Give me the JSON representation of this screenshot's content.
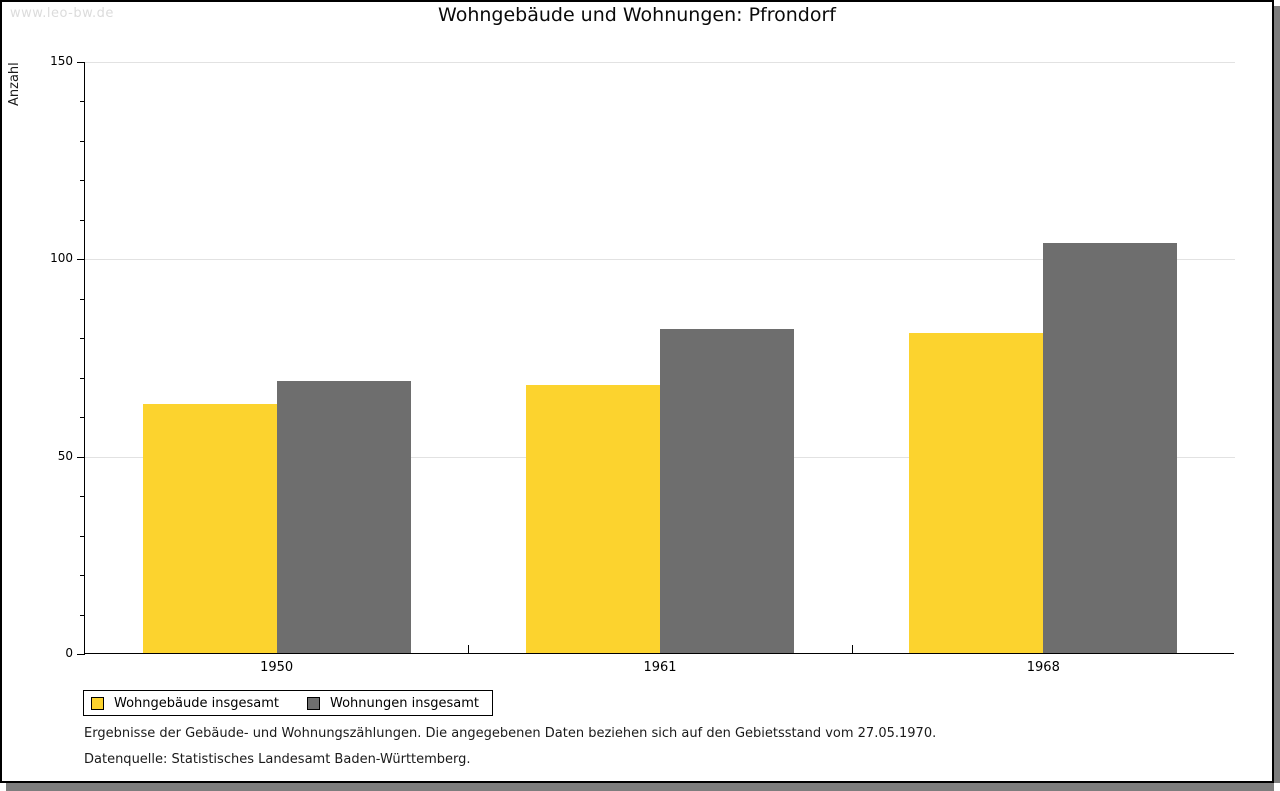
{
  "page": {
    "watermark": "www.leo-bw.de",
    "title": "Wohngebäude und Wohnungen: Pfrondorf",
    "footnote1": "Ergebnisse der Gebäude- und Wohnungszählungen. Die angegebenen Daten beziehen sich auf den Gebietsstand vom 27.05.1970.",
    "footnote2": "Datenquelle: Statistisches Landesamt Baden-Württemberg."
  },
  "chart_data": {
    "type": "bar",
    "title": "Wohngebäude und Wohnungen: Pfrondorf",
    "categories": [
      "1950",
      "1961",
      "1968"
    ],
    "series": [
      {
        "name": "Wohngebäude insgesamt",
        "color": "#FCD32E",
        "values": [
          63,
          68,
          81
        ]
      },
      {
        "name": "Wohnungen insgesamt",
        "color": "#6E6E6E",
        "values": [
          69,
          82,
          104
        ]
      }
    ],
    "xlabel": "",
    "ylabel": "Anzahl",
    "ylim": [
      0,
      150
    ],
    "yticks": [
      0,
      50,
      100,
      150
    ],
    "minor_tick_step": 10,
    "grid": true,
    "legend_position": "bottom-left",
    "colors": {
      "grid": "#e2e2e2",
      "axis": "#000000",
      "watermark": "#dcdcdc",
      "shadow": "#7d7d7d"
    }
  }
}
